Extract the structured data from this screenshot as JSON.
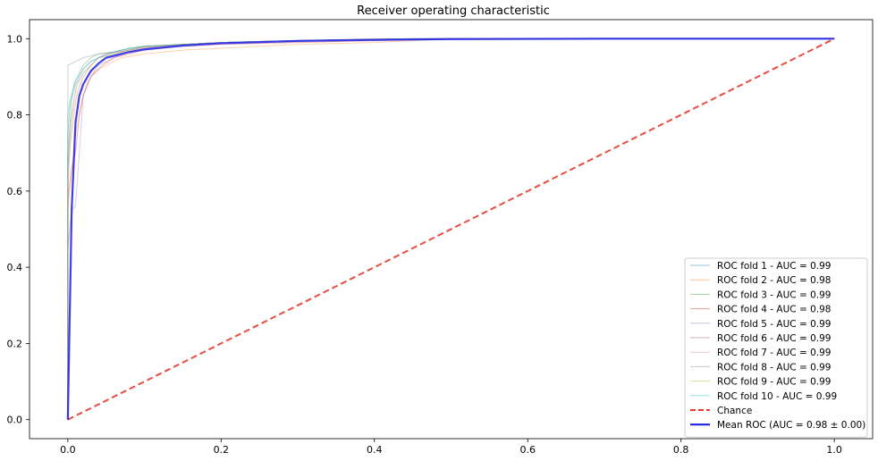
{
  "chart_data": {
    "type": "line",
    "title": "Receiver operating characteristic",
    "xlabel": "",
    "ylabel": "",
    "xlim": [
      -0.05,
      1.05
    ],
    "ylim": [
      -0.05,
      1.05
    ],
    "x_ticks": [
      {
        "value": 0.0,
        "label": "0.0"
      },
      {
        "value": 0.2,
        "label": "0.2"
      },
      {
        "value": 0.4,
        "label": "0.4"
      },
      {
        "value": 0.6,
        "label": "0.6"
      },
      {
        "value": 0.8,
        "label": "0.8"
      },
      {
        "value": 1.0,
        "label": "1.0"
      }
    ],
    "y_ticks": [
      {
        "value": 0.0,
        "label": "0.0"
      },
      {
        "value": 0.2,
        "label": "0.2"
      },
      {
        "value": 0.4,
        "label": "0.4"
      },
      {
        "value": 0.6,
        "label": "0.6"
      },
      {
        "value": 0.8,
        "label": "0.8"
      },
      {
        "value": 1.0,
        "label": "1.0"
      }
    ],
    "grid": false,
    "legend_position": "bottom-right",
    "series": [
      {
        "name": "ROC fold 1 - AUC = 0.99",
        "color": "#1f77b4",
        "style": "thin",
        "x": [
          0,
          0,
          0.003,
          0.005,
          0.01,
          0.015,
          0.02,
          0.03,
          0.04,
          0.05,
          0.07,
          0.1,
          0.15,
          0.2,
          0.3,
          0.4,
          0.6,
          1.0
        ],
        "y": [
          0,
          0.7,
          0.78,
          0.84,
          0.88,
          0.9,
          0.92,
          0.94,
          0.95,
          0.96,
          0.97,
          0.98,
          0.985,
          0.99,
          0.995,
          0.998,
          1.0,
          1.0
        ]
      },
      {
        "name": "ROC fold 2 - AUC = 0.98",
        "color": "#ff7f0e",
        "style": "thin",
        "x": [
          0,
          0,
          0.005,
          0.01,
          0.015,
          0.02,
          0.03,
          0.04,
          0.05,
          0.07,
          0.1,
          0.15,
          0.2,
          0.3,
          0.4,
          0.5,
          1.0
        ],
        "y": [
          0,
          0.55,
          0.65,
          0.75,
          0.8,
          0.85,
          0.9,
          0.92,
          0.93,
          0.95,
          0.96,
          0.97,
          0.975,
          0.985,
          0.99,
          1.0,
          1.0
        ]
      },
      {
        "name": "ROC fold 3 - AUC = 0.99",
        "color": "#2ca02c",
        "style": "thin",
        "x": [
          0,
          0,
          0.003,
          0.008,
          0.015,
          0.02,
          0.03,
          0.04,
          0.06,
          0.08,
          0.1,
          0.15,
          0.2,
          0.3,
          0.45,
          1.0
        ],
        "y": [
          0,
          0.75,
          0.83,
          0.88,
          0.91,
          0.93,
          0.95,
          0.96,
          0.965,
          0.975,
          0.98,
          0.985,
          0.99,
          0.995,
          1.0,
          1.0
        ]
      },
      {
        "name": "ROC fold 4 - AUC = 0.98",
        "color": "#d62728",
        "style": "thin",
        "x": [
          0,
          0,
          0.005,
          0.01,
          0.015,
          0.02,
          0.025,
          0.03,
          0.045,
          0.06,
          0.08,
          0.1,
          0.15,
          0.2,
          0.3,
          0.4,
          0.5,
          1.0
        ],
        "y": [
          0,
          0.58,
          0.66,
          0.7,
          0.8,
          0.85,
          0.88,
          0.9,
          0.93,
          0.95,
          0.96,
          0.97,
          0.98,
          0.985,
          0.99,
          0.995,
          1.0,
          1.0
        ]
      },
      {
        "name": "ROC fold 5 - AUC = 0.99",
        "color": "#9467bd",
        "style": "thin",
        "x": [
          0,
          0,
          0.005,
          0.01,
          0.015,
          0.02,
          0.03,
          0.04,
          0.06,
          0.08,
          0.1,
          0.15,
          0.2,
          0.3,
          0.45,
          1.0
        ],
        "y": [
          0,
          0.45,
          0.55,
          0.56,
          0.7,
          0.85,
          0.9,
          0.93,
          0.95,
          0.965,
          0.975,
          0.985,
          0.99,
          0.995,
          1.0,
          1.0
        ]
      },
      {
        "name": "ROC fold 6 - AUC = 0.99",
        "color": "#8c564b",
        "style": "thin",
        "x": [
          0,
          0,
          0.004,
          0.008,
          0.012,
          0.02,
          0.03,
          0.04,
          0.06,
          0.08,
          0.1,
          0.15,
          0.2,
          0.3,
          0.4,
          1.0
        ],
        "y": [
          0,
          0.66,
          0.78,
          0.84,
          0.88,
          0.91,
          0.93,
          0.95,
          0.96,
          0.97,
          0.98,
          0.985,
          0.99,
          0.995,
          1.0,
          1.0
        ]
      },
      {
        "name": "ROC fold 7 - AUC = 0.99",
        "color": "#e377c2",
        "style": "thin",
        "x": [
          0,
          0,
          0.003,
          0.008,
          0.012,
          0.02,
          0.03,
          0.04,
          0.05,
          0.08,
          0.1,
          0.15,
          0.2,
          0.3,
          0.45,
          1.0
        ],
        "y": [
          0,
          0.6,
          0.72,
          0.8,
          0.86,
          0.9,
          0.93,
          0.95,
          0.96,
          0.97,
          0.978,
          0.985,
          0.99,
          0.995,
          1.0,
          1.0
        ]
      },
      {
        "name": "ROC fold 8 - AUC = 0.99",
        "color": "#7f7f7f",
        "style": "thin",
        "x": [
          0,
          0,
          0.005,
          0.01,
          0.015,
          0.02,
          0.03,
          0.04,
          0.06,
          0.08,
          0.1,
          0.15,
          0.2,
          0.3,
          0.45,
          1.0
        ],
        "y": [
          0,
          0.93,
          0.935,
          0.94,
          0.945,
          0.95,
          0.955,
          0.96,
          0.965,
          0.97,
          0.975,
          0.985,
          0.99,
          0.995,
          1.0,
          1.0
        ]
      },
      {
        "name": "ROC fold 9 - AUC = 0.99",
        "color": "#bcbd22",
        "style": "thin",
        "x": [
          0,
          0,
          0.004,
          0.008,
          0.015,
          0.02,
          0.03,
          0.04,
          0.06,
          0.08,
          0.1,
          0.15,
          0.2,
          0.3,
          0.45,
          1.0
        ],
        "y": [
          0,
          0.64,
          0.74,
          0.82,
          0.87,
          0.9,
          0.93,
          0.95,
          0.96,
          0.97,
          0.978,
          0.985,
          0.99,
          0.995,
          1.0,
          1.0
        ]
      },
      {
        "name": "ROC fold 10 - AUC = 0.99",
        "color": "#17becf",
        "style": "thin",
        "x": [
          0,
          0,
          0.003,
          0.006,
          0.01,
          0.02,
          0.03,
          0.04,
          0.06,
          0.08,
          0.1,
          0.15,
          0.2,
          0.3,
          0.45,
          1.0
        ],
        "y": [
          0,
          0.8,
          0.84,
          0.86,
          0.89,
          0.92,
          0.94,
          0.95,
          0.965,
          0.975,
          0.98,
          0.985,
          0.99,
          0.995,
          1.0,
          1.0
        ]
      },
      {
        "name": "Chance",
        "color": "#e8392f",
        "style": "dashed",
        "x": [
          0,
          1.0
        ],
        "y": [
          0,
          1.0
        ]
      },
      {
        "name": "Mean ROC (AUC = 0.98 ± 0.00)",
        "color": "#1f1fe6",
        "style": "bold",
        "x": [
          0,
          0.005,
          0.01,
          0.015,
          0.02,
          0.03,
          0.04,
          0.05,
          0.06,
          0.08,
          0.1,
          0.15,
          0.2,
          0.3,
          0.4,
          0.5,
          0.7,
          1.0
        ],
        "y": [
          0,
          0.55,
          0.78,
          0.85,
          0.88,
          0.915,
          0.935,
          0.95,
          0.955,
          0.965,
          0.972,
          0.982,
          0.988,
          0.994,
          0.997,
          0.999,
          1.0,
          1.0
        ]
      }
    ]
  }
}
